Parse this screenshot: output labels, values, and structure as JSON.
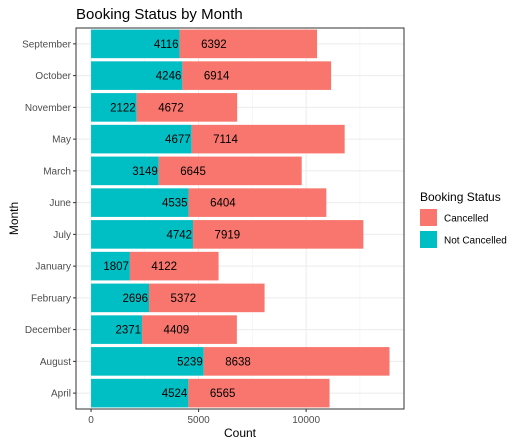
{
  "chart_data": {
    "type": "bar",
    "orientation": "horizontal",
    "stacked": true,
    "title": "Booking Status by Month",
    "xlabel": "Count",
    "ylabel": "Month",
    "categories": [
      "September",
      "October",
      "November",
      "May",
      "March",
      "June",
      "July",
      "January",
      "February",
      "December",
      "August",
      "April"
    ],
    "series": [
      {
        "name": "Not Cancelled",
        "color": "#00bfc4",
        "values": [
          4116,
          4246,
          2122,
          4677,
          3149,
          4535,
          4742,
          1807,
          2696,
          2371,
          5239,
          4524
        ]
      },
      {
        "name": "Cancelled",
        "color": "#f8766d",
        "values": [
          6392,
          6914,
          4672,
          7114,
          6645,
          6404,
          7919,
          4122,
          5372,
          4409,
          8638,
          6565
        ]
      }
    ],
    "xlim": [
      -700,
      14550
    ],
    "xticks": [
      0,
      5000,
      10000
    ],
    "xtick_labels": [
      "0",
      "5000",
      "10000"
    ],
    "grid": true,
    "legend": {
      "title": "Booking Status",
      "placement": "right",
      "entries": [
        "Cancelled",
        "Not Cancelled"
      ]
    }
  }
}
